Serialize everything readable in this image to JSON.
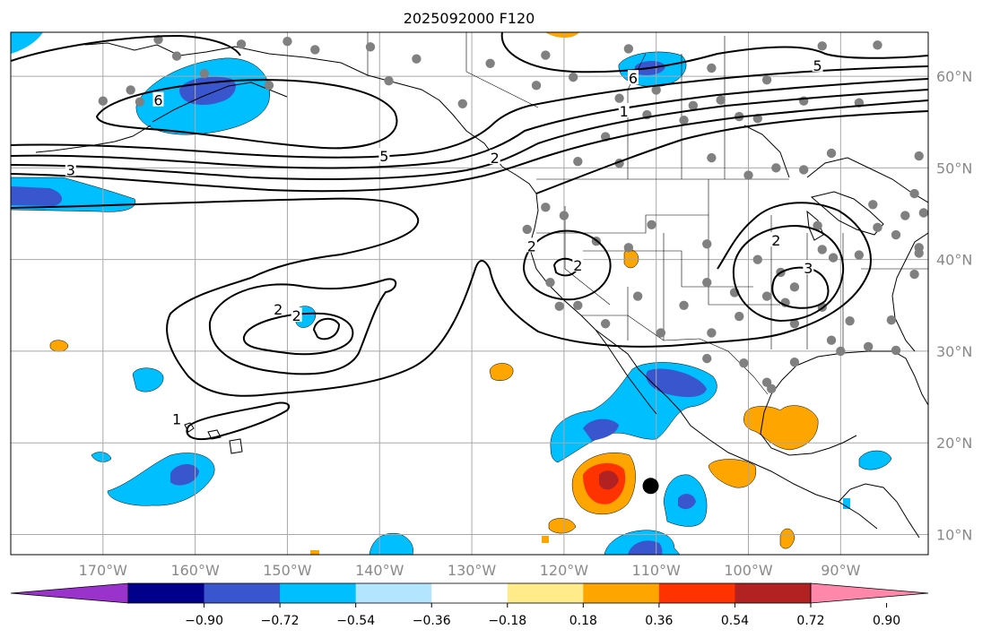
{
  "title": "2025092000 F120",
  "colors": {
    "background": "#ffffff",
    "grid": "#a8a8a8",
    "contour": "#000000",
    "coast": "#000000",
    "station_dot": "#808080",
    "storm_marker": "#000000",
    "axis_label": "#8a8a8a"
  },
  "map": {
    "lon_range": [
      -180,
      -80.5
    ],
    "lat_range": [
      7.8,
      64.8
    ],
    "lon_ticks": [
      {
        "value": -170,
        "label": "170°W"
      },
      {
        "value": -160,
        "label": "160°W"
      },
      {
        "value": -150,
        "label": "150°W"
      },
      {
        "value": -140,
        "label": "140°W"
      },
      {
        "value": -130,
        "label": "130°W"
      },
      {
        "value": -120,
        "label": "120°W"
      },
      {
        "value": -110,
        "label": "110°W"
      },
      {
        "value": -100,
        "label": "100°W"
      },
      {
        "value": -90,
        "label": "90°W"
      }
    ],
    "lat_ticks": [
      {
        "value": 10,
        "label": "10°N"
      },
      {
        "value": 20,
        "label": "20°N"
      },
      {
        "value": 30,
        "label": "30°N"
      },
      {
        "value": 40,
        "label": "40°N"
      },
      {
        "value": 50,
        "label": "50°N"
      },
      {
        "value": 60,
        "label": "60°N"
      }
    ],
    "contour_labels": [
      {
        "text": "6",
        "lon": -164,
        "lat": 57.3
      },
      {
        "text": "5",
        "lon": -139.5,
        "lat": 51.2
      },
      {
        "text": "3",
        "lon": -173.5,
        "lat": 49.7
      },
      {
        "text": "2",
        "lon": -127.5,
        "lat": 51.0
      },
      {
        "text": "1",
        "lon": -113.5,
        "lat": 56.1
      },
      {
        "text": "5",
        "lon": -92.5,
        "lat": 61.1
      },
      {
        "text": "6",
        "lon": -112.5,
        "lat": 59.7
      },
      {
        "text": "2",
        "lon": -151,
        "lat": 34.5
      },
      {
        "text": "2",
        "lon": -149,
        "lat": 33.8
      },
      {
        "text": "1",
        "lon": -162,
        "lat": 22.5
      },
      {
        "text": "2",
        "lon": -123.5,
        "lat": 41.4
      },
      {
        "text": "2",
        "lon": -118.5,
        "lat": 39.3
      },
      {
        "text": "2",
        "lon": -97,
        "lat": 42.0
      },
      {
        "text": "3",
        "lon": -93.5,
        "lat": 39.0
      }
    ],
    "storm_center": {
      "lon": -110.6,
      "lat": 15.3
    }
  },
  "colorbar": {
    "ticks": [
      "−0.90",
      "−0.72",
      "−0.54",
      "−0.36",
      "−0.18",
      "0.18",
      "0.36",
      "0.54",
      "0.72",
      "0.90"
    ],
    "colors": [
      "#9933cc",
      "#00008b",
      "#3a56cf",
      "#00bfff",
      "#b3e5ff",
      "#ffffff",
      "#ffeb8a",
      "#ffa500",
      "#ff3300",
      "#b22222",
      "#ff88aa"
    ]
  }
}
